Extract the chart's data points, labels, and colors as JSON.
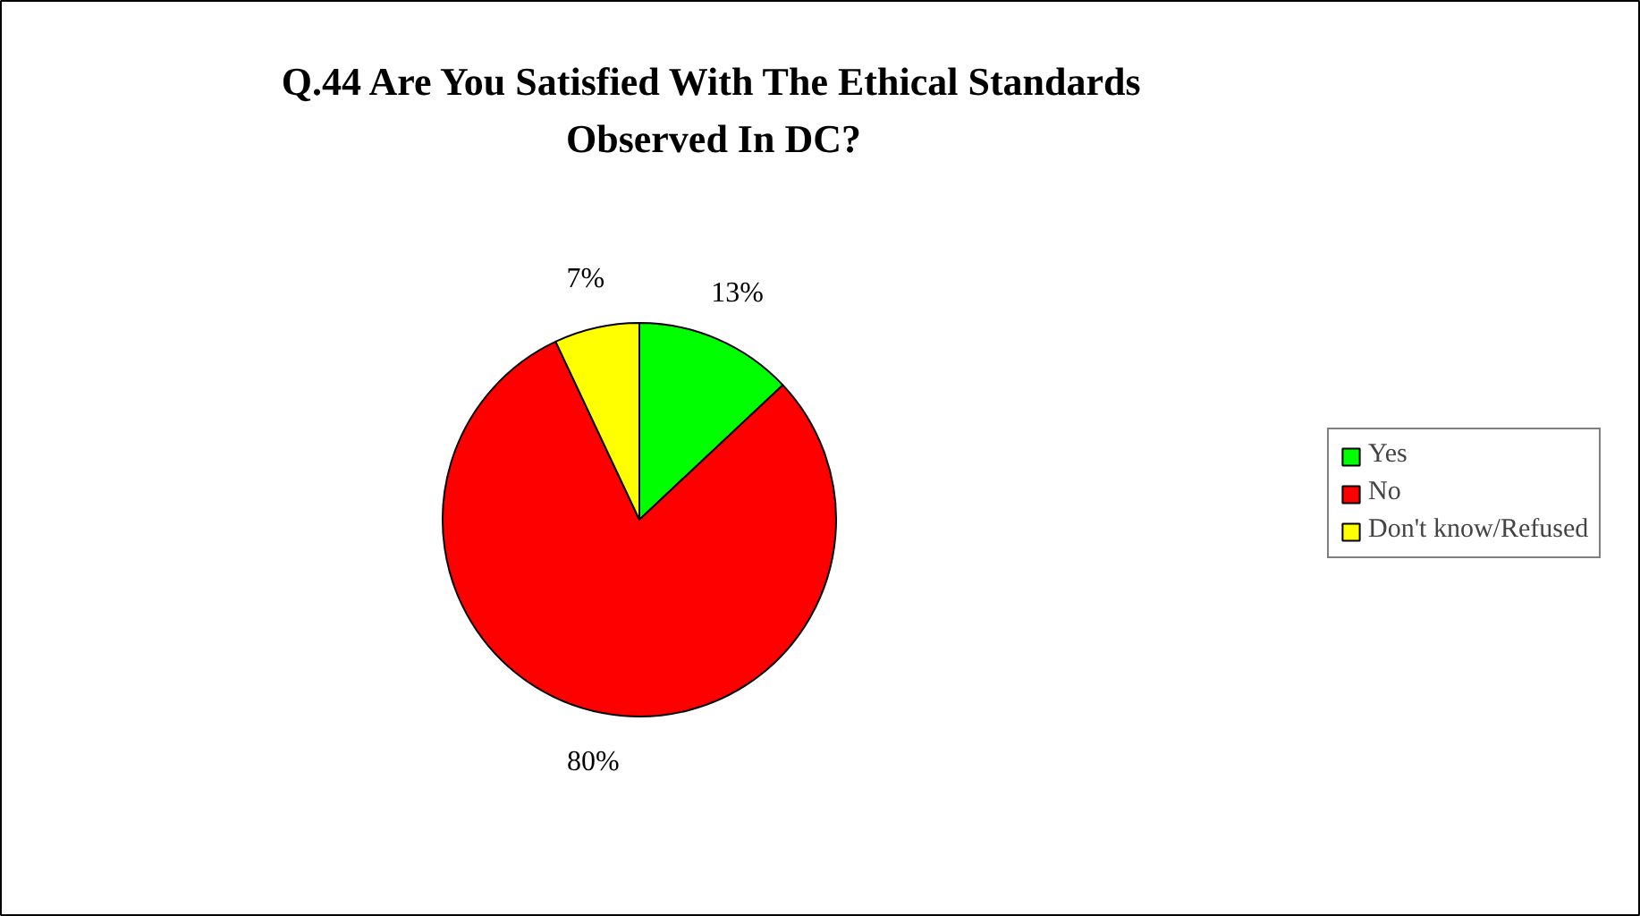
{
  "chart_data": {
    "type": "pie",
    "title": "Q.44 Are You Satisfied With The Ethical Standards Observed In DC?",
    "categories": [
      "Yes",
      "No",
      "Don't know/Refused"
    ],
    "values": [
      13,
      80,
      7
    ],
    "colors": [
      "#00ff00",
      "#ff0000",
      "#ffff00"
    ],
    "value_labels": [
      "13%",
      "80%",
      "7%"
    ],
    "legend": "right"
  }
}
